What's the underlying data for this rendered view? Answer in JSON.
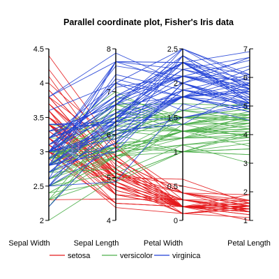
{
  "chart_data": {
    "type": "parallel-coordinates",
    "title": "Parallel coordinate plot, Fisher's Iris data",
    "axes": [
      {
        "label": "Sepal Width",
        "range": [
          2,
          4.5
        ],
        "ticks": [
          "2",
          "2.5",
          "3",
          "3.5",
          "4",
          "4.5"
        ],
        "tick_side": "left"
      },
      {
        "label": "Sepal Length",
        "range": [
          4,
          8
        ],
        "ticks": [
          "4",
          "5",
          "6",
          "7",
          "8"
        ],
        "tick_side": "left"
      },
      {
        "label": "Petal Width",
        "range": [
          0,
          2.5
        ],
        "ticks": [
          "0",
          "0.5",
          "1",
          "1.5",
          "2",
          "2.5"
        ],
        "tick_side": "left"
      },
      {
        "label": "Petal Length",
        "range": [
          1,
          7
        ],
        "ticks": [
          "1",
          "2",
          "3",
          "4",
          "5",
          "6",
          "7"
        ],
        "tick_side": "right"
      }
    ],
    "legend": {
      "position": "bottom"
    },
    "series": [
      {
        "name": "setosa",
        "color": "#e41a1c",
        "lines": [
          [
            3.5,
            5.1,
            0.2,
            1.4
          ],
          [
            3.0,
            4.9,
            0.2,
            1.4
          ],
          [
            3.2,
            4.7,
            0.2,
            1.3
          ],
          [
            3.1,
            4.6,
            0.2,
            1.5
          ],
          [
            3.6,
            5.0,
            0.2,
            1.4
          ],
          [
            3.9,
            5.4,
            0.4,
            1.7
          ],
          [
            3.4,
            4.6,
            0.3,
            1.4
          ],
          [
            3.4,
            5.0,
            0.2,
            1.5
          ],
          [
            2.9,
            4.4,
            0.2,
            1.4
          ],
          [
            3.1,
            4.9,
            0.1,
            1.5
          ],
          [
            3.7,
            5.4,
            0.2,
            1.5
          ],
          [
            3.4,
            4.8,
            0.2,
            1.6
          ],
          [
            3.0,
            4.8,
            0.1,
            1.4
          ],
          [
            3.0,
            4.3,
            0.1,
            1.1
          ],
          [
            4.0,
            5.8,
            0.2,
            1.2
          ],
          [
            4.4,
            5.7,
            0.4,
            1.5
          ],
          [
            3.9,
            5.4,
            0.4,
            1.3
          ],
          [
            3.5,
            5.1,
            0.3,
            1.4
          ],
          [
            3.8,
            5.7,
            0.3,
            1.7
          ],
          [
            3.8,
            5.1,
            0.3,
            1.5
          ],
          [
            3.4,
            5.4,
            0.2,
            1.7
          ],
          [
            3.7,
            5.1,
            0.4,
            1.5
          ],
          [
            3.6,
            4.6,
            0.2,
            1.0
          ],
          [
            3.3,
            5.1,
            0.5,
            1.7
          ],
          [
            3.4,
            4.8,
            0.2,
            1.9
          ],
          [
            3.0,
            5.0,
            0.2,
            1.6
          ],
          [
            3.4,
            5.0,
            0.4,
            1.6
          ],
          [
            3.5,
            5.2,
            0.2,
            1.5
          ],
          [
            3.4,
            5.2,
            0.2,
            1.4
          ],
          [
            3.2,
            4.7,
            0.2,
            1.6
          ],
          [
            3.1,
            4.8,
            0.2,
            1.6
          ],
          [
            3.4,
            5.4,
            0.4,
            1.5
          ],
          [
            4.1,
            5.2,
            0.1,
            1.5
          ],
          [
            4.2,
            5.5,
            0.2,
            1.4
          ],
          [
            3.1,
            4.9,
            0.2,
            1.5
          ],
          [
            3.2,
            5.0,
            0.2,
            1.2
          ],
          [
            3.5,
            5.5,
            0.2,
            1.3
          ],
          [
            3.6,
            4.9,
            0.1,
            1.4
          ],
          [
            3.0,
            4.4,
            0.2,
            1.3
          ],
          [
            3.4,
            5.1,
            0.2,
            1.5
          ],
          [
            3.5,
            5.0,
            0.3,
            1.3
          ],
          [
            2.3,
            4.5,
            0.3,
            1.3
          ],
          [
            3.2,
            4.4,
            0.2,
            1.3
          ],
          [
            3.5,
            5.0,
            0.6,
            1.6
          ],
          [
            3.8,
            5.1,
            0.4,
            1.9
          ],
          [
            3.0,
            4.8,
            0.3,
            1.4
          ],
          [
            3.8,
            5.1,
            0.2,
            1.6
          ],
          [
            3.2,
            4.6,
            0.2,
            1.4
          ],
          [
            3.7,
            5.3,
            0.2,
            1.5
          ],
          [
            3.3,
            5.0,
            0.2,
            1.4
          ]
        ]
      },
      {
        "name": "versicolor",
        "color": "#4daf4a",
        "lines": [
          [
            3.2,
            7.0,
            1.4,
            4.7
          ],
          [
            3.2,
            6.4,
            1.5,
            4.5
          ],
          [
            3.1,
            6.9,
            1.5,
            4.9
          ],
          [
            2.3,
            5.5,
            1.3,
            4.0
          ],
          [
            2.8,
            6.5,
            1.5,
            4.6
          ],
          [
            2.8,
            5.7,
            1.3,
            4.5
          ],
          [
            3.3,
            6.3,
            1.6,
            4.7
          ],
          [
            2.4,
            4.9,
            1.0,
            3.3
          ],
          [
            2.9,
            6.6,
            1.3,
            4.6
          ],
          [
            2.7,
            5.2,
            1.4,
            3.9
          ],
          [
            2.0,
            5.0,
            1.0,
            3.5
          ],
          [
            3.0,
            5.9,
            1.5,
            4.2
          ],
          [
            2.2,
            6.0,
            1.0,
            4.0
          ],
          [
            2.9,
            6.1,
            1.4,
            4.7
          ],
          [
            2.9,
            5.6,
            1.3,
            3.6
          ],
          [
            3.1,
            6.7,
            1.4,
            4.4
          ],
          [
            3.0,
            5.6,
            1.5,
            4.5
          ],
          [
            2.7,
            5.8,
            1.0,
            4.1
          ],
          [
            2.2,
            6.2,
            1.5,
            4.5
          ],
          [
            2.5,
            5.6,
            1.1,
            3.9
          ],
          [
            3.2,
            5.9,
            1.8,
            4.8
          ],
          [
            2.8,
            6.1,
            1.3,
            4.0
          ],
          [
            2.5,
            6.3,
            1.5,
            4.9
          ],
          [
            2.8,
            6.1,
            1.2,
            4.7
          ],
          [
            2.9,
            6.4,
            1.3,
            4.3
          ],
          [
            3.0,
            6.6,
            1.4,
            4.4
          ],
          [
            2.8,
            6.8,
            1.4,
            4.8
          ],
          [
            3.0,
            6.7,
            1.7,
            5.0
          ],
          [
            2.9,
            6.0,
            1.5,
            4.5
          ],
          [
            2.6,
            5.7,
            1.0,
            3.5
          ],
          [
            2.4,
            5.5,
            1.1,
            3.8
          ],
          [
            2.4,
            5.5,
            1.0,
            3.7
          ],
          [
            2.7,
            5.8,
            1.2,
            3.9
          ],
          [
            2.7,
            6.0,
            1.6,
            5.1
          ],
          [
            3.0,
            5.4,
            1.5,
            4.5
          ],
          [
            3.4,
            6.0,
            1.6,
            4.5
          ],
          [
            3.1,
            6.7,
            1.5,
            4.7
          ],
          [
            2.3,
            6.3,
            1.3,
            4.4
          ],
          [
            3.0,
            5.6,
            1.3,
            4.1
          ],
          [
            2.5,
            5.5,
            1.3,
            4.0
          ],
          [
            2.6,
            5.5,
            1.2,
            4.4
          ],
          [
            3.0,
            6.1,
            1.4,
            4.6
          ],
          [
            2.6,
            5.8,
            1.2,
            4.0
          ],
          [
            2.3,
            5.0,
            1.0,
            3.3
          ],
          [
            2.7,
            5.6,
            1.3,
            4.2
          ],
          [
            3.0,
            5.7,
            1.2,
            4.2
          ],
          [
            2.9,
            5.7,
            1.3,
            4.2
          ],
          [
            2.9,
            6.2,
            1.3,
            4.3
          ],
          [
            2.5,
            5.1,
            1.1,
            3.0
          ],
          [
            2.8,
            5.7,
            1.3,
            4.1
          ]
        ]
      },
      {
        "name": "virginica",
        "color": "#1f3fd6",
        "lines": [
          [
            3.3,
            6.3,
            2.5,
            6.0
          ],
          [
            2.7,
            5.8,
            1.9,
            5.1
          ],
          [
            3.0,
            7.1,
            2.1,
            5.9
          ],
          [
            2.9,
            6.3,
            1.8,
            5.6
          ],
          [
            3.0,
            6.5,
            2.2,
            5.8
          ],
          [
            3.0,
            7.6,
            2.1,
            6.6
          ],
          [
            2.5,
            4.9,
            1.7,
            4.5
          ],
          [
            2.9,
            7.3,
            1.8,
            6.3
          ],
          [
            2.5,
            6.7,
            1.8,
            5.8
          ],
          [
            3.6,
            7.2,
            2.5,
            6.1
          ],
          [
            3.2,
            6.5,
            2.0,
            5.1
          ],
          [
            2.7,
            6.4,
            1.9,
            5.3
          ],
          [
            3.0,
            6.8,
            2.1,
            5.5
          ],
          [
            2.5,
            5.7,
            2.0,
            5.0
          ],
          [
            2.8,
            5.8,
            2.4,
            5.1
          ],
          [
            3.2,
            6.4,
            2.3,
            5.3
          ],
          [
            3.0,
            6.5,
            1.8,
            5.5
          ],
          [
            3.8,
            7.7,
            2.2,
            6.7
          ],
          [
            2.6,
            7.7,
            2.3,
            6.9
          ],
          [
            2.2,
            6.0,
            1.5,
            5.0
          ],
          [
            3.2,
            6.9,
            2.3,
            5.7
          ],
          [
            2.8,
            5.6,
            2.0,
            4.9
          ],
          [
            2.8,
            7.7,
            2.0,
            6.7
          ],
          [
            2.7,
            6.3,
            1.8,
            4.9
          ],
          [
            3.3,
            6.7,
            2.1,
            5.7
          ],
          [
            3.2,
            7.2,
            1.8,
            6.0
          ],
          [
            2.8,
            6.2,
            1.8,
            4.8
          ],
          [
            3.0,
            6.1,
            1.8,
            4.9
          ],
          [
            2.8,
            6.4,
            2.1,
            5.6
          ],
          [
            3.0,
            7.2,
            1.6,
            5.8
          ],
          [
            2.8,
            7.4,
            1.9,
            6.1
          ],
          [
            3.8,
            7.9,
            2.0,
            6.4
          ],
          [
            2.8,
            6.4,
            2.2,
            5.6
          ],
          [
            2.8,
            6.3,
            1.5,
            5.1
          ],
          [
            2.6,
            6.1,
            1.4,
            5.6
          ],
          [
            3.0,
            7.7,
            2.3,
            6.1
          ],
          [
            3.4,
            6.3,
            2.4,
            5.6
          ],
          [
            3.1,
            6.4,
            1.8,
            5.5
          ],
          [
            3.0,
            6.0,
            1.8,
            4.8
          ],
          [
            3.1,
            6.9,
            2.1,
            5.4
          ],
          [
            3.1,
            6.7,
            2.4,
            5.6
          ],
          [
            3.1,
            6.9,
            2.3,
            5.1
          ],
          [
            2.7,
            5.8,
            1.9,
            5.1
          ],
          [
            3.2,
            6.8,
            2.3,
            5.9
          ],
          [
            3.3,
            6.7,
            2.5,
            5.7
          ],
          [
            3.0,
            6.7,
            2.3,
            5.2
          ],
          [
            2.5,
            6.3,
            1.9,
            5.0
          ],
          [
            3.0,
            6.5,
            2.0,
            5.2
          ],
          [
            3.4,
            6.2,
            2.3,
            5.4
          ],
          [
            3.0,
            5.9,
            1.8,
            5.1
          ]
        ]
      }
    ]
  }
}
